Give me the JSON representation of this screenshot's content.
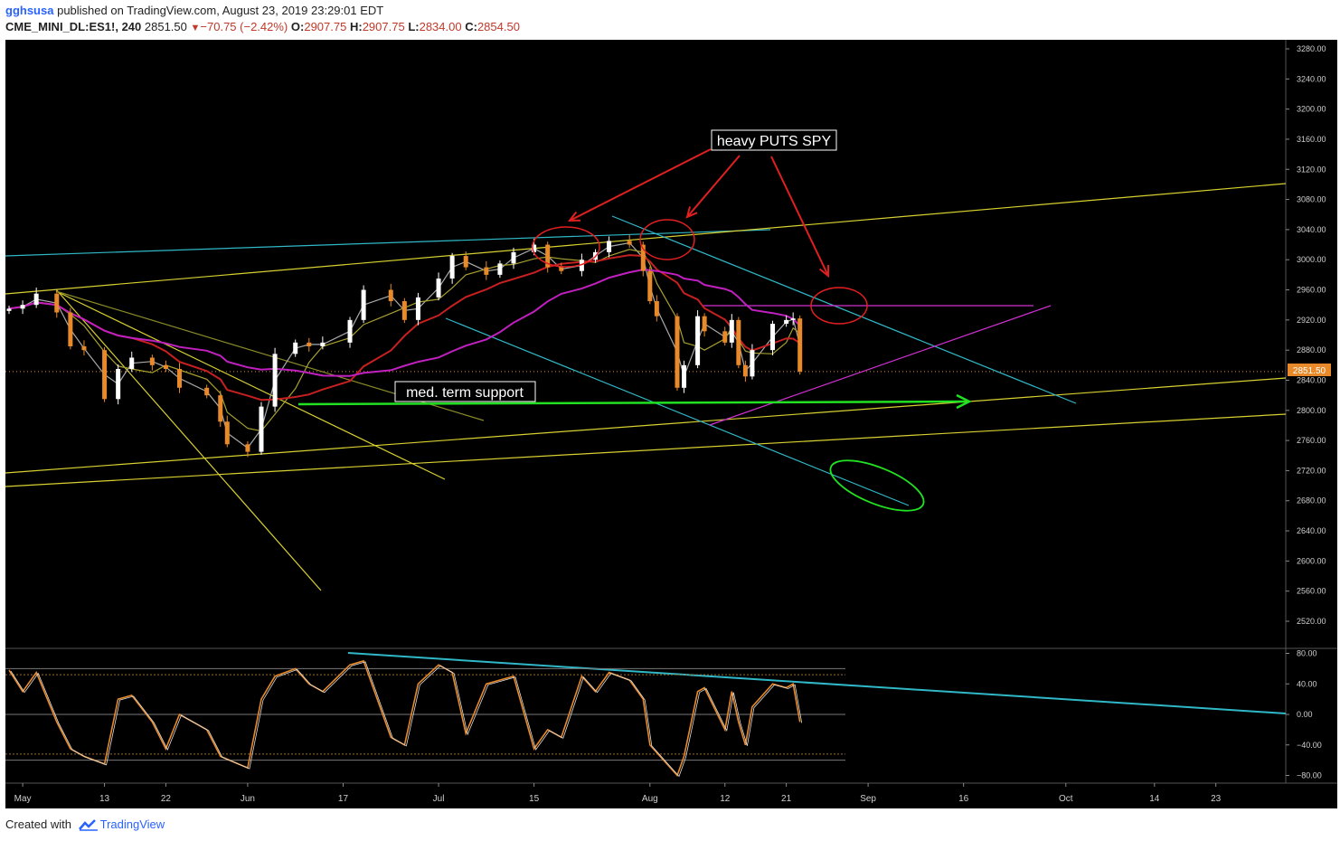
{
  "header": {
    "user": "gghsusa",
    "published_text": "published on TradingView.com, August 23, 2019 23:29:01 EDT",
    "symbol": "CME_MINI_DL:ES1!, 240",
    "last": "2851.50",
    "change": "−70.75 (−2.42%)",
    "open_label": "O:",
    "open": "2907.75",
    "high_label": "H:",
    "high": "2907.75",
    "low_label": "L:",
    "low": "2834.00",
    "close_label": "C:",
    "close": "2854.50"
  },
  "footer": {
    "created_with": "Created with",
    "brand": "TradingView"
  },
  "annotations": {
    "heavy_puts": "heavy PUTS SPY",
    "med_support": "med. term support"
  },
  "colors": {
    "background": "#000000",
    "panel_line": "#555555",
    "up_candle": "#ffffff",
    "down_candle": "#e8892a",
    "ma_gray": "#aaaaaa",
    "ma_olive": "#a8a030",
    "ma_red": "#c62020",
    "ma_magenta": "#c020c0",
    "trend_yellow": "#d8d030",
    "trend_cyan": "#30b8c8",
    "trend_magenta": "#d030d0",
    "arrow_red": "#e02020",
    "support_green": "#22e022",
    "price_badge": "#e8892a"
  },
  "chart_data": [
    {
      "type": "candlestick",
      "title": "CME_MINI_DL:ES1!, 240",
      "x_ticks": [
        "May",
        "13",
        "22",
        "Jun",
        "17",
        "Jul",
        "15",
        "Aug",
        "12",
        "21",
        "Sep",
        "16",
        "Oct",
        "14",
        "23"
      ],
      "y_ticks": [
        "3280.00",
        "3240.00",
        "3200.00",
        "3160.00",
        "3120.00",
        "3080.00",
        "3040.00",
        "3000.00",
        "2960.00",
        "2920.00",
        "2880.00",
        "2840.00",
        "2800.00",
        "2760.00",
        "2720.00",
        "2680.00",
        "2640.00",
        "2600.00",
        "2560.00",
        "2520.00"
      ],
      "ylim": [
        2495,
        3290
      ],
      "last_price": "2851.50",
      "approx_closes": [
        [
          "2019-04-29",
          2935
        ],
        [
          "2019-05-01",
          2940
        ],
        [
          "2019-05-03",
          2955
        ],
        [
          "2019-05-06",
          2930
        ],
        [
          "2019-05-08",
          2885
        ],
        [
          "2019-05-10",
          2880
        ],
        [
          "2019-05-13",
          2815
        ],
        [
          "2019-05-15",
          2855
        ],
        [
          "2019-05-17",
          2870
        ],
        [
          "2019-05-20",
          2860
        ],
        [
          "2019-05-22",
          2855
        ],
        [
          "2019-05-24",
          2830
        ],
        [
          "2019-05-28",
          2820
        ],
        [
          "2019-05-30",
          2785
        ],
        [
          "2019-05-31",
          2755
        ],
        [
          "2019-06-03",
          2745
        ],
        [
          "2019-06-05",
          2805
        ],
        [
          "2019-06-07",
          2875
        ],
        [
          "2019-06-10",
          2890
        ],
        [
          "2019-06-12",
          2885
        ],
        [
          "2019-06-14",
          2890
        ],
        [
          "2019-06-18",
          2920
        ],
        [
          "2019-06-20",
          2960
        ],
        [
          "2019-06-24",
          2945
        ],
        [
          "2019-06-26",
          2920
        ],
        [
          "2019-06-28",
          2950
        ],
        [
          "2019-07-01",
          2975
        ],
        [
          "2019-07-03",
          3005
        ],
        [
          "2019-07-05",
          2990
        ],
        [
          "2019-07-08",
          2980
        ],
        [
          "2019-07-10",
          2995
        ],
        [
          "2019-07-12",
          3010
        ],
        [
          "2019-07-15",
          3020
        ],
        [
          "2019-07-17",
          2990
        ],
        [
          "2019-07-19",
          2985
        ],
        [
          "2019-07-22",
          3000
        ],
        [
          "2019-07-24",
          3010
        ],
        [
          "2019-07-26",
          3025
        ],
        [
          "2019-07-29",
          3020
        ],
        [
          "2019-07-31",
          2985
        ],
        [
          "2019-08-01",
          2945
        ],
        [
          "2019-08-02",
          2925
        ],
        [
          "2019-08-05",
          2830
        ],
        [
          "2019-08-06",
          2860
        ],
        [
          "2019-08-08",
          2925
        ],
        [
          "2019-08-09",
          2905
        ],
        [
          "2019-08-12",
          2890
        ],
        [
          "2019-08-13",
          2920
        ],
        [
          "2019-08-14",
          2860
        ],
        [
          "2019-08-15",
          2845
        ],
        [
          "2019-08-16",
          2880
        ],
        [
          "2019-08-19",
          2915
        ],
        [
          "2019-08-21",
          2920
        ],
        [
          "2019-08-22",
          2922
        ],
        [
          "2019-08-23",
          2851.5
        ]
      ]
    },
    {
      "type": "line",
      "title": "",
      "y_ticks": [
        "80.00",
        "40.00",
        "0.00",
        "−40.00",
        "−80.00"
      ],
      "ylim": [
        -92,
        84
      ],
      "levels": [
        60,
        52,
        0,
        -52,
        -60
      ],
      "approx_values": [
        [
          "2019-04-29",
          58
        ],
        [
          "2019-05-01",
          30
        ],
        [
          "2019-05-03",
          55
        ],
        [
          "2019-05-06",
          -10
        ],
        [
          "2019-05-08",
          -45
        ],
        [
          "2019-05-10",
          -55
        ],
        [
          "2019-05-13",
          -65
        ],
        [
          "2019-05-15",
          20
        ],
        [
          "2019-05-17",
          25
        ],
        [
          "2019-05-20",
          -10
        ],
        [
          "2019-05-22",
          -45
        ],
        [
          "2019-05-24",
          0
        ],
        [
          "2019-05-28",
          -20
        ],
        [
          "2019-05-30",
          -55
        ],
        [
          "2019-06-03",
          -70
        ],
        [
          "2019-06-05",
          20
        ],
        [
          "2019-06-07",
          50
        ],
        [
          "2019-06-10",
          60
        ],
        [
          "2019-06-12",
          40
        ],
        [
          "2019-06-14",
          30
        ],
        [
          "2019-06-18",
          65
        ],
        [
          "2019-06-20",
          70
        ],
        [
          "2019-06-24",
          -30
        ],
        [
          "2019-06-26",
          -40
        ],
        [
          "2019-06-28",
          40
        ],
        [
          "2019-07-01",
          65
        ],
        [
          "2019-07-03",
          55
        ],
        [
          "2019-07-05",
          -25
        ],
        [
          "2019-07-08",
          40
        ],
        [
          "2019-07-10",
          45
        ],
        [
          "2019-07-12",
          50
        ],
        [
          "2019-07-15",
          -45
        ],
        [
          "2019-07-17",
          -20
        ],
        [
          "2019-07-19",
          -30
        ],
        [
          "2019-07-22",
          50
        ],
        [
          "2019-07-24",
          30
        ],
        [
          "2019-07-26",
          55
        ],
        [
          "2019-07-29",
          45
        ],
        [
          "2019-07-31",
          20
        ],
        [
          "2019-08-01",
          -40
        ],
        [
          "2019-08-05",
          -80
        ],
        [
          "2019-08-06",
          -55
        ],
        [
          "2019-08-08",
          30
        ],
        [
          "2019-08-09",
          35
        ],
        [
          "2019-08-12",
          -20
        ],
        [
          "2019-08-13",
          30
        ],
        [
          "2019-08-14",
          -10
        ],
        [
          "2019-08-15",
          -40
        ],
        [
          "2019-08-16",
          10
        ],
        [
          "2019-08-19",
          40
        ],
        [
          "2019-08-21",
          35
        ],
        [
          "2019-08-22",
          40
        ],
        [
          "2019-08-23",
          -10
        ]
      ]
    }
  ]
}
